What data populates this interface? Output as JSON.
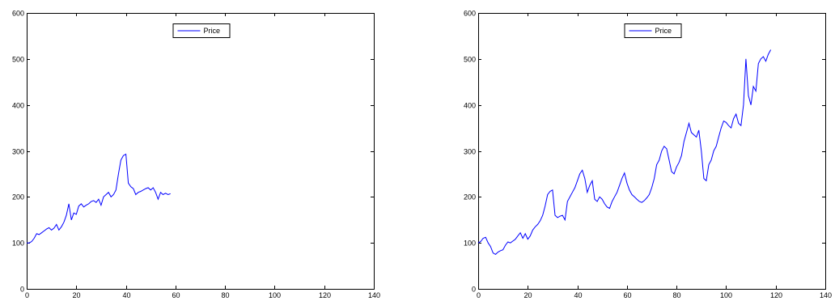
{
  "chart_data": [
    {
      "type": "line",
      "xlim": [
        0,
        140
      ],
      "ylim": [
        0,
        600
      ],
      "xticks": [
        0,
        20,
        40,
        60,
        80,
        100,
        120,
        140
      ],
      "yticks": [
        0,
        100,
        200,
        300,
        400,
        500,
        600
      ],
      "grid": false,
      "legend_position": "top-center",
      "series": [
        {
          "name": "Price",
          "color": "#0000ff",
          "x": [
            0,
            1,
            2,
            3,
            4,
            5,
            6,
            7,
            8,
            9,
            10,
            11,
            12,
            13,
            14,
            15,
            16,
            17,
            18,
            19,
            20,
            21,
            22,
            23,
            24,
            25,
            26,
            27,
            28,
            29,
            30,
            31,
            32,
            33,
            34,
            35,
            36,
            37,
            38,
            39,
            40,
            41,
            42,
            43,
            44,
            45,
            46,
            47,
            48,
            49,
            50,
            51,
            52,
            53,
            54,
            55,
            56,
            57,
            58
          ],
          "y": [
            100,
            100,
            103,
            110,
            120,
            118,
            122,
            126,
            130,
            133,
            128,
            132,
            140,
            128,
            135,
            145,
            160,
            185,
            150,
            165,
            162,
            180,
            185,
            178,
            182,
            185,
            190,
            192,
            188,
            195,
            182,
            200,
            205,
            210,
            200,
            205,
            215,
            250,
            280,
            290,
            293,
            230,
            222,
            218,
            205,
            210,
            212,
            215,
            218,
            220,
            215,
            220,
            210,
            195,
            210,
            205,
            208,
            205,
            207
          ]
        }
      ]
    },
    {
      "type": "line",
      "xlim": [
        0,
        140
      ],
      "ylim": [
        0,
        600
      ],
      "xticks": [
        0,
        20,
        40,
        60,
        80,
        100,
        120,
        140
      ],
      "yticks": [
        0,
        100,
        200,
        300,
        400,
        500,
        600
      ],
      "grid": false,
      "legend_position": "top-center",
      "series": [
        {
          "name": "Price",
          "color": "#0000ff",
          "x": [
            0,
            1,
            2,
            3,
            4,
            5,
            6,
            7,
            8,
            9,
            10,
            11,
            12,
            13,
            14,
            15,
            16,
            17,
            18,
            19,
            20,
            21,
            22,
            23,
            24,
            25,
            26,
            27,
            28,
            29,
            30,
            31,
            32,
            33,
            34,
            35,
            36,
            37,
            38,
            39,
            40,
            41,
            42,
            43,
            44,
            45,
            46,
            47,
            48,
            49,
            50,
            51,
            52,
            53,
            54,
            55,
            56,
            57,
            58,
            59,
            60,
            61,
            62,
            63,
            64,
            65,
            66,
            67,
            68,
            69,
            70,
            71,
            72,
            73,
            74,
            75,
            76,
            77,
            78,
            79,
            80,
            81,
            82,
            83,
            84,
            85,
            86,
            87,
            88,
            89,
            90,
            91,
            92,
            93,
            94,
            95,
            96,
            97,
            98,
            99,
            100,
            101,
            102,
            103,
            104,
            105,
            106,
            107,
            108,
            109,
            110,
            111,
            112,
            113,
            114,
            115,
            116,
            117,
            118
          ],
          "y": [
            100,
            103,
            110,
            112,
            100,
            92,
            78,
            75,
            80,
            83,
            85,
            95,
            102,
            100,
            104,
            108,
            115,
            122,
            110,
            120,
            108,
            115,
            128,
            135,
            140,
            148,
            160,
            180,
            205,
            212,
            215,
            160,
            155,
            158,
            160,
            150,
            190,
            200,
            210,
            220,
            235,
            250,
            258,
            240,
            210,
            225,
            235,
            195,
            190,
            200,
            195,
            185,
            178,
            175,
            190,
            200,
            210,
            225,
            240,
            252,
            230,
            215,
            205,
            200,
            195,
            190,
            188,
            192,
            198,
            205,
            220,
            240,
            270,
            280,
            300,
            310,
            305,
            280,
            255,
            250,
            265,
            275,
            290,
            320,
            340,
            360,
            340,
            335,
            330,
            345,
            300,
            240,
            235,
            270,
            280,
            300,
            310,
            330,
            350,
            365,
            362,
            355,
            350,
            370,
            380,
            360,
            355,
            400,
            500,
            420,
            400,
            440,
            430,
            490,
            500,
            505,
            495,
            510,
            520
          ]
        }
      ]
    }
  ]
}
